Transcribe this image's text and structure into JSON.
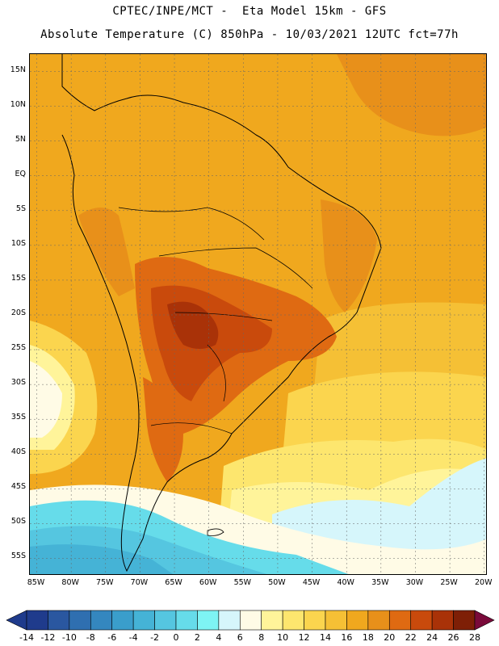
{
  "titles": {
    "line1": "CPTEC/INPE/MCT -  Eta Model 15km - GFS",
    "line2": "Absolute Temperature (C) 850hPa - 10/03/2021 12UTC fct=77h"
  },
  "axes": {
    "lat_labels": [
      "15N",
      "10N",
      "5N",
      "EQ",
      "5S",
      "10S",
      "15S",
      "20S",
      "25S",
      "30S",
      "35S",
      "40S",
      "45S",
      "50S",
      "55S"
    ],
    "lat_values": [
      15,
      10,
      5,
      0,
      -5,
      -10,
      -15,
      -20,
      -25,
      -30,
      -35,
      -40,
      -45,
      -50,
      -55
    ],
    "lon_labels": [
      "85W",
      "80W",
      "75W",
      "70W",
      "65W",
      "60W",
      "55W",
      "50W",
      "45W",
      "40W",
      "35W",
      "30W",
      "25W",
      "20W"
    ],
    "lon_values": [
      -85,
      -80,
      -75,
      -70,
      -65,
      -60,
      -55,
      -50,
      -45,
      -40,
      -35,
      -30,
      -25,
      -20
    ],
    "lat_range": [
      -57.5,
      17.5
    ],
    "lon_range": [
      -86,
      -19.5
    ]
  },
  "colorbar": {
    "labels": [
      "-14",
      "-12",
      "-10",
      "-8",
      "-6",
      "-4",
      "-2",
      "0",
      "2",
      "4",
      "6",
      "8",
      "10",
      "12",
      "14",
      "16",
      "18",
      "20",
      "22",
      "24",
      "26",
      "28"
    ],
    "colors": [
      "#1f3b8c",
      "#2a57a0",
      "#2f6fb0",
      "#3487bf",
      "#3a9ecb",
      "#45b3d6",
      "#55c6e0",
      "#66dcea",
      "#7ef4f4",
      "#d6f6fb",
      "#fffbe6",
      "#fff49a",
      "#fde66e",
      "#fbd54e",
      "#f5c035",
      "#f0a81e",
      "#e8901a",
      "#df6a12",
      "#c94a0c",
      "#a93208",
      "#7e1f06"
    ],
    "under_color": "#1f3b8c",
    "over_color": "#7a0a3a"
  }
}
